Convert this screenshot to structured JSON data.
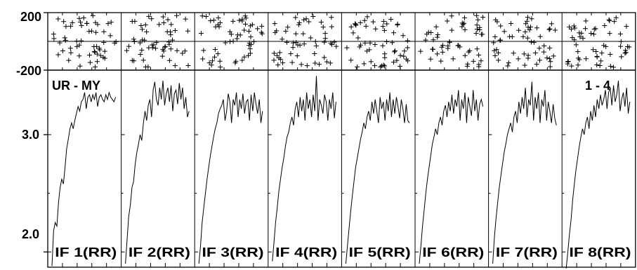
{
  "chart_data": {
    "type": "line",
    "title": "",
    "xlabel": "",
    "ylabel": "",
    "baseline_label": "UR - MY",
    "channel_range_label": "1 - 4",
    "phase_panel": {
      "type": "scatter",
      "ylim": [
        -200,
        200
      ],
      "ticks": [
        "200",
        "-200"
      ]
    },
    "amp_panel": {
      "ylim": [
        1.87,
        3.55
      ],
      "ticks": [
        "3.0",
        "2.0"
      ],
      "grid": false
    },
    "series": [
      {
        "name": "IF 1(RR)",
        "values": [
          1.88,
          2.18,
          2.25,
          2.22,
          2.42,
          2.55,
          2.62,
          2.58,
          2.72,
          2.88,
          2.96,
          3.05,
          3.1,
          3.05,
          3.12,
          3.18,
          3.24,
          3.2,
          3.28,
          3.3,
          3.36,
          3.22,
          3.32,
          3.34,
          3.28,
          3.34,
          3.3,
          3.36,
          3.24,
          3.32,
          3.34,
          3.3,
          3.28,
          3.34,
          3.3,
          3.36,
          3.32,
          3.3,
          3.28,
          3.32
        ]
      },
      {
        "name": "IF 2(RR)",
        "values": [
          1.9,
          2.1,
          2.3,
          2.4,
          2.55,
          2.6,
          2.75,
          2.85,
          2.92,
          3.0,
          2.95,
          3.1,
          3.2,
          3.12,
          3.25,
          3.3,
          3.15,
          3.38,
          3.45,
          3.3,
          3.25,
          3.4,
          3.3,
          3.46,
          3.25,
          3.35,
          3.4,
          3.28,
          3.42,
          3.2,
          3.35,
          3.38,
          3.26,
          3.44,
          3.3,
          3.4,
          3.22,
          3.32,
          3.15,
          3.2
        ]
      },
      {
        "name": "IF 3(RR)",
        "values": [
          1.9,
          2.05,
          2.25,
          2.38,
          2.5,
          2.62,
          2.72,
          2.82,
          2.9,
          2.98,
          3.05,
          3.1,
          3.18,
          3.22,
          3.25,
          3.3,
          3.12,
          3.2,
          3.35,
          3.28,
          3.1,
          3.3,
          3.25,
          3.36,
          3.15,
          3.3,
          3.22,
          3.35,
          3.18,
          3.28,
          3.3,
          3.12,
          3.34,
          3.2,
          3.36,
          3.26,
          3.18,
          3.3,
          3.1,
          3.2
        ]
      },
      {
        "name": "IF 4(RR)",
        "values": [
          1.92,
          2.08,
          2.25,
          2.38,
          2.52,
          2.62,
          2.72,
          2.8,
          2.9,
          2.98,
          3.02,
          3.1,
          3.15,
          3.08,
          3.22,
          3.28,
          3.15,
          3.32,
          3.2,
          3.3,
          3.12,
          3.36,
          3.22,
          3.3,
          3.15,
          3.34,
          3.2,
          3.5,
          3.12,
          3.3,
          3.25,
          3.18,
          3.34,
          3.28,
          3.12,
          3.3,
          3.22,
          3.36,
          3.14,
          3.28
        ]
      },
      {
        "name": "IF 5(RR)",
        "values": [
          1.9,
          2.05,
          2.2,
          2.35,
          2.48,
          2.6,
          2.72,
          2.8,
          2.88,
          2.96,
          3.02,
          3.1,
          3.05,
          3.15,
          3.2,
          3.12,
          3.28,
          3.18,
          3.3,
          3.2,
          3.1,
          3.32,
          3.22,
          3.28,
          3.12,
          3.3,
          3.2,
          3.36,
          3.15,
          3.3,
          3.18,
          3.32,
          3.24,
          3.14,
          3.3,
          3.22,
          3.1,
          3.26,
          3.12,
          3.1
        ]
      },
      {
        "name": "IF 6(RR)",
        "values": [
          1.9,
          2.05,
          2.22,
          2.36,
          2.5,
          2.62,
          2.72,
          2.82,
          2.92,
          2.98,
          3.05,
          3.0,
          3.1,
          3.15,
          3.08,
          3.2,
          3.25,
          3.15,
          3.28,
          3.2,
          3.34,
          3.18,
          3.3,
          3.24,
          3.38,
          3.12,
          3.3,
          3.22,
          3.36,
          3.1,
          3.32,
          3.24,
          3.16,
          3.38,
          3.2,
          3.3,
          3.12,
          3.26,
          3.3,
          3.24
        ]
      },
      {
        "name": "IF 7(RR)",
        "values": [
          1.9,
          2.12,
          2.28,
          2.42,
          2.55,
          2.65,
          2.75,
          2.85,
          2.92,
          3.0,
          3.05,
          3.1,
          3.02,
          3.15,
          3.2,
          3.1,
          3.28,
          3.18,
          3.32,
          3.22,
          3.4,
          3.15,
          3.3,
          3.25,
          3.45,
          3.12,
          3.32,
          3.22,
          3.36,
          3.1,
          3.3,
          3.24,
          3.38,
          3.12,
          3.28,
          3.2,
          3.1,
          3.26,
          3.14,
          3.08
        ]
      },
      {
        "name": "IF 8(RR)",
        "values": [
          1.86,
          2.0,
          2.15,
          2.28,
          2.45,
          2.58,
          2.7,
          2.8,
          2.9,
          2.98,
          3.05,
          3.0,
          3.1,
          3.15,
          3.05,
          3.2,
          3.12,
          3.25,
          3.15,
          3.3,
          3.22,
          3.34,
          3.25,
          3.3,
          3.38,
          3.22,
          3.36,
          3.4,
          3.25,
          3.42,
          3.28,
          3.34,
          3.46,
          3.2,
          3.3,
          3.36,
          3.24,
          3.4,
          3.18,
          3.28
        ]
      }
    ]
  }
}
